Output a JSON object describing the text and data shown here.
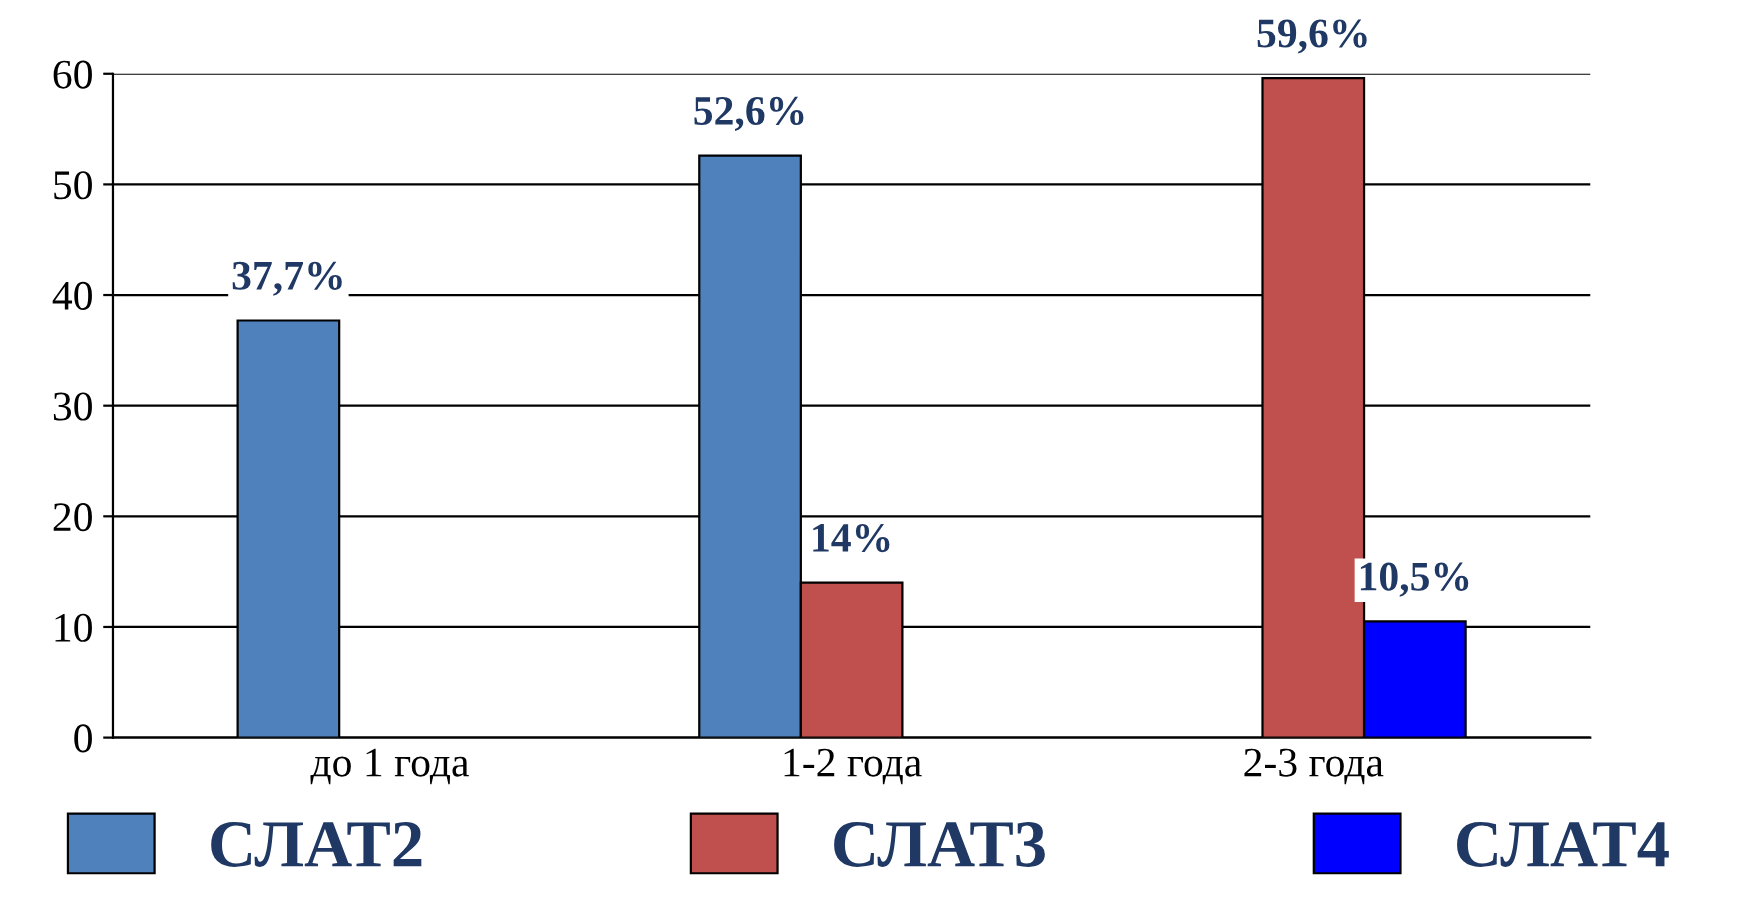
{
  "chart_data": {
    "type": "bar",
    "categories": [
      "до 1 года",
      "1-2 года",
      "2-3 года"
    ],
    "series": [
      {
        "name": "СЛАТ2",
        "color": "#4f81bd",
        "values": [
          37.7,
          52.6,
          null
        ],
        "value_labels": [
          "37,7%",
          "52,6%",
          null
        ]
      },
      {
        "name": "СЛАТ3",
        "color": "#c0504d",
        "values": [
          null,
          14,
          59.6
        ],
        "value_labels": [
          null,
          "14%",
          "59,6%"
        ]
      },
      {
        "name": "СЛАТ4",
        "color": "#0000ff",
        "values": [
          null,
          null,
          10.5
        ],
        "value_labels": [
          null,
          null,
          "10,5%"
        ]
      }
    ],
    "ylim": [
      0,
      60
    ],
    "yticks": [
      0,
      10,
      20,
      30,
      40,
      50,
      60
    ],
    "grid": "y",
    "legend": "bottom"
  }
}
